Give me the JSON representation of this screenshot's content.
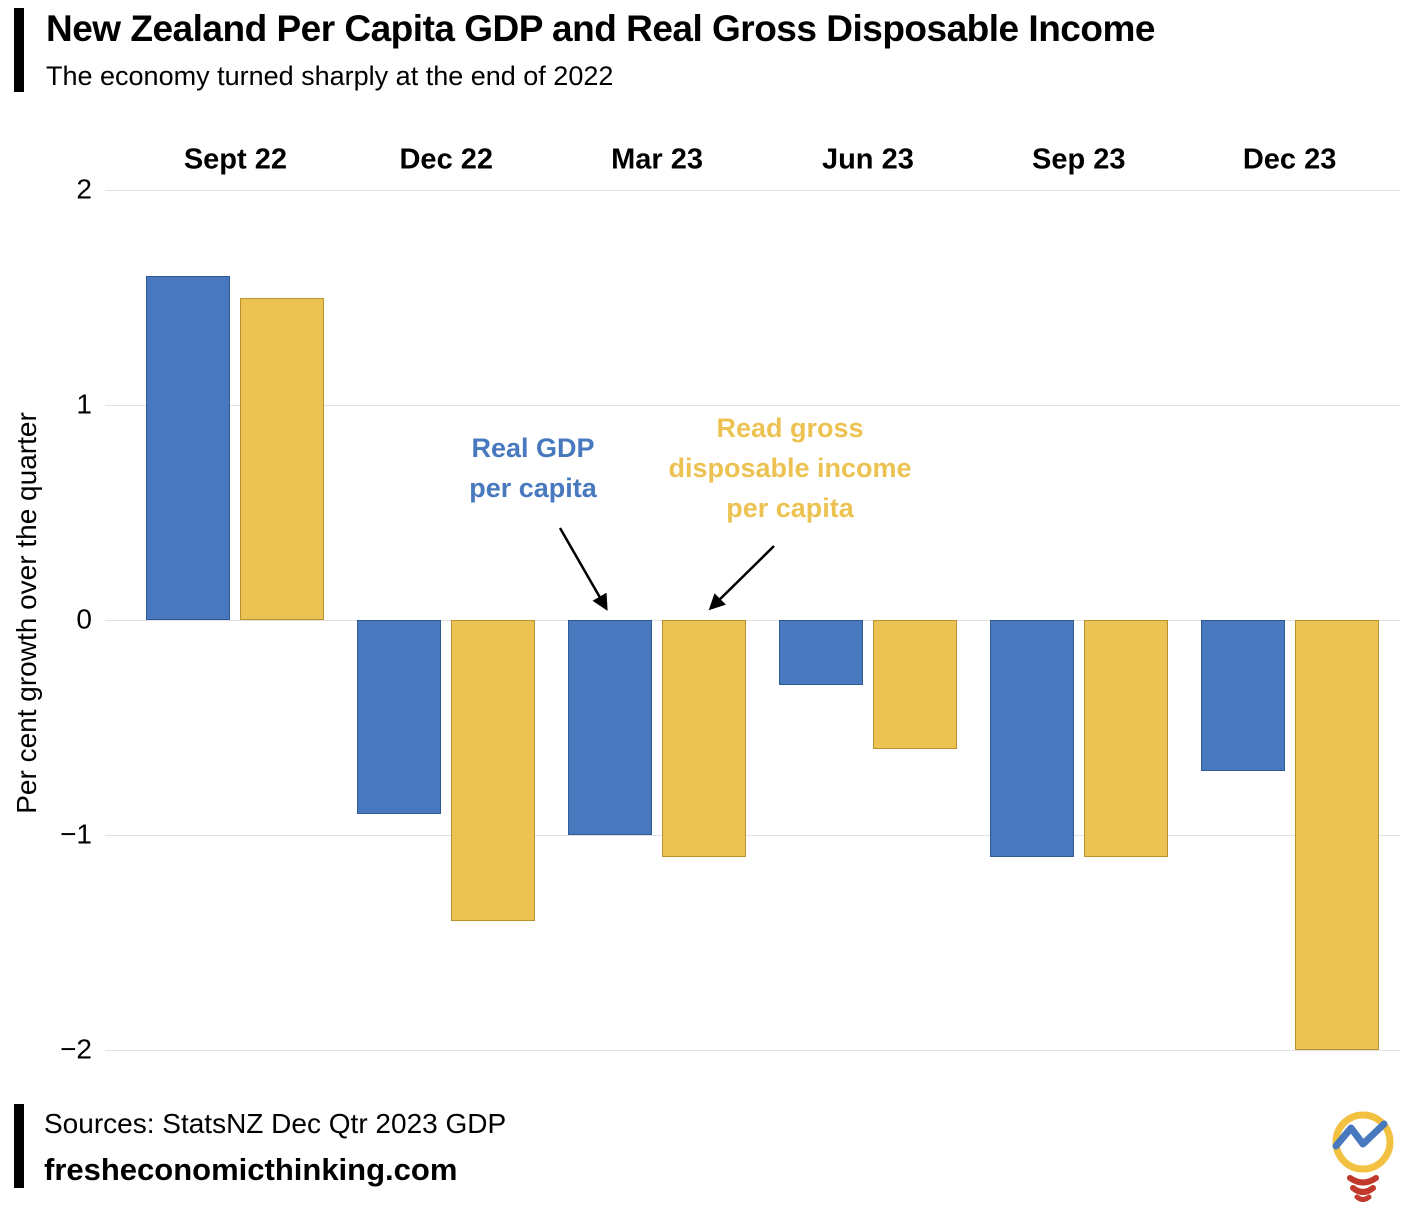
{
  "header": {
    "title": "New Zealand Per Capita GDP and Real Gross Disposable Income",
    "subtitle": "The economy turned sharply at the end of 2022"
  },
  "chart_data": {
    "type": "bar",
    "categories": [
      "Sept 22",
      "Dec 22",
      "Mar 23",
      "Jun 23",
      "Sep 23",
      "Dec 23"
    ],
    "series": [
      {
        "name": "Real GDP per capita",
        "color": "#4878BD",
        "border": "#2f5a96",
        "values": [
          1.6,
          -0.9,
          -1.0,
          -0.3,
          -1.1,
          -0.7
        ]
      },
      {
        "name": "Read gross disposable income per capita",
        "color": "#ECC352",
        "border": "#b8922f",
        "values": [
          1.5,
          -1.4,
          -1.1,
          -0.6,
          -1.1,
          -2.0
        ]
      }
    ],
    "title": "New Zealand Per Capita GDP and Real Gross Disposable Income",
    "xlabel": "",
    "ylabel": "Per cent growth over the quarter",
    "ylim": [
      -2,
      2
    ],
    "yticks": [
      2,
      1,
      0,
      -1,
      -2
    ],
    "ytick_labels": [
      "2",
      "1",
      "0",
      "−1",
      "−2"
    ],
    "grid": true,
    "legend_position": "none",
    "annotations": [
      {
        "lines": [
          "Real GDP",
          "per capita"
        ],
        "color": "#4878BD",
        "points_to": "Mar 23 Real GDP per capita bar"
      },
      {
        "lines": [
          "Read gross",
          "disposable income",
          "per capita"
        ],
        "color": "#ECC352",
        "points_to": "Mar 23 Read gross disposable income per capita bar"
      }
    ]
  },
  "footer": {
    "sources": "Sources: StatsNZ Dec Qtr 2023 GDP",
    "site": "fresheconomicthinking.com"
  },
  "logo": {
    "name": "fresh-economic-thinking-lightbulb-logo"
  }
}
